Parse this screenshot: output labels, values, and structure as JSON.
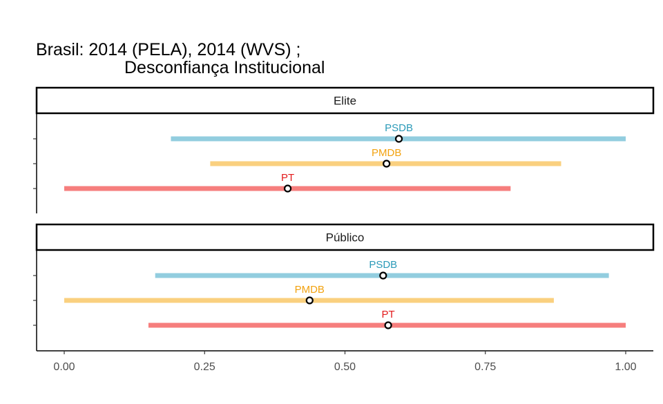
{
  "chart_data": {
    "type": "interval",
    "title": "Brasil: 2014 (PELA), 2014 (WVS) ;",
    "subtitle": "Desconfiança Institucional",
    "xlim": [
      0,
      1.05
    ],
    "x_ticks": [
      "0.00",
      "0.25",
      "0.50",
      "0.75",
      "1.00"
    ],
    "x_tick_values": [
      0,
      0.25,
      0.5,
      0.75,
      1.0
    ],
    "grid": false,
    "colors": {
      "PSDB": "#2b9ab8",
      "PMDB": "#f2a20f",
      "PT": "#e31a1c"
    },
    "bar_colors": {
      "PSDB": "#92cddf",
      "PMDB": "#fad07f",
      "PT": "#f67e7d"
    },
    "panels": [
      {
        "name": "Elite",
        "series": [
          {
            "name": "PSDB",
            "low": 0.19,
            "high": 1.0,
            "point": 0.596
          },
          {
            "name": "PMDB",
            "low": 0.26,
            "high": 0.885,
            "point": 0.574
          },
          {
            "name": "PT",
            "low": 0.0,
            "high": 0.795,
            "point": 0.398
          }
        ]
      },
      {
        "name": "Público",
        "series": [
          {
            "name": "PSDB",
            "low": 0.162,
            "high": 0.97,
            "point": 0.568
          },
          {
            "name": "PMDB",
            "low": 0.0,
            "high": 0.872,
            "point": 0.437
          },
          {
            "name": "PT",
            "low": 0.15,
            "high": 1.0,
            "point": 0.577
          }
        ]
      }
    ]
  }
}
